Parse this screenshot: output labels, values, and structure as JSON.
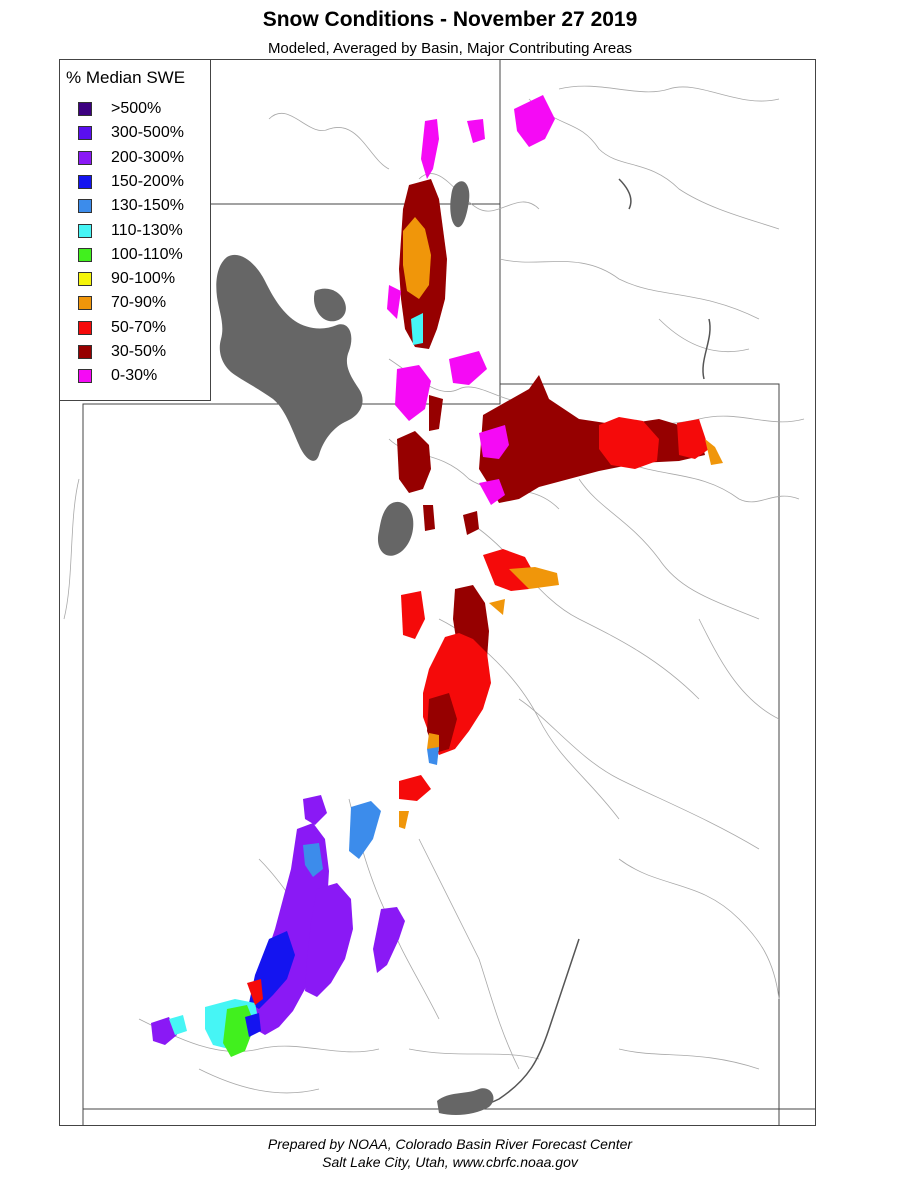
{
  "header": {
    "title": "Snow Conditions - November 27 2019",
    "subtitle": "Modeled, Averaged by Basin, Major Contributing Areas"
  },
  "legend": {
    "title": "% Median SWE",
    "items": [
      {
        "label": ">500%",
        "color": "#3c0080"
      },
      {
        "label": "300-500%",
        "color": "#5a0ff0"
      },
      {
        "label": "200-300%",
        "color": "#8a19f5"
      },
      {
        "label": "150-200%",
        "color": "#1414f0"
      },
      {
        "label": "130-150%",
        "color": "#3c8ceb"
      },
      {
        "label": "110-130%",
        "color": "#46f5f5"
      },
      {
        "label": "100-110%",
        "color": "#41f01e"
      },
      {
        "label": "90-100%",
        "color": "#f5f50a"
      },
      {
        "label": "70-90%",
        "color": "#f0960a"
      },
      {
        "label": "50-70%",
        "color": "#f50a0a"
      },
      {
        "label": "30-50%",
        "color": "#960000"
      },
      {
        "label": "0-30%",
        "color": "#f50af5"
      }
    ]
  },
  "colors": {
    "lake": "#666666",
    "outline": "#999999",
    "border": "#444444"
  },
  "footer": {
    "line1": "Prepared by NOAA, Colorado Basin River Forecast Center",
    "line2": "Salt Lake City, Utah, www.cbrfc.noaa.gov"
  }
}
